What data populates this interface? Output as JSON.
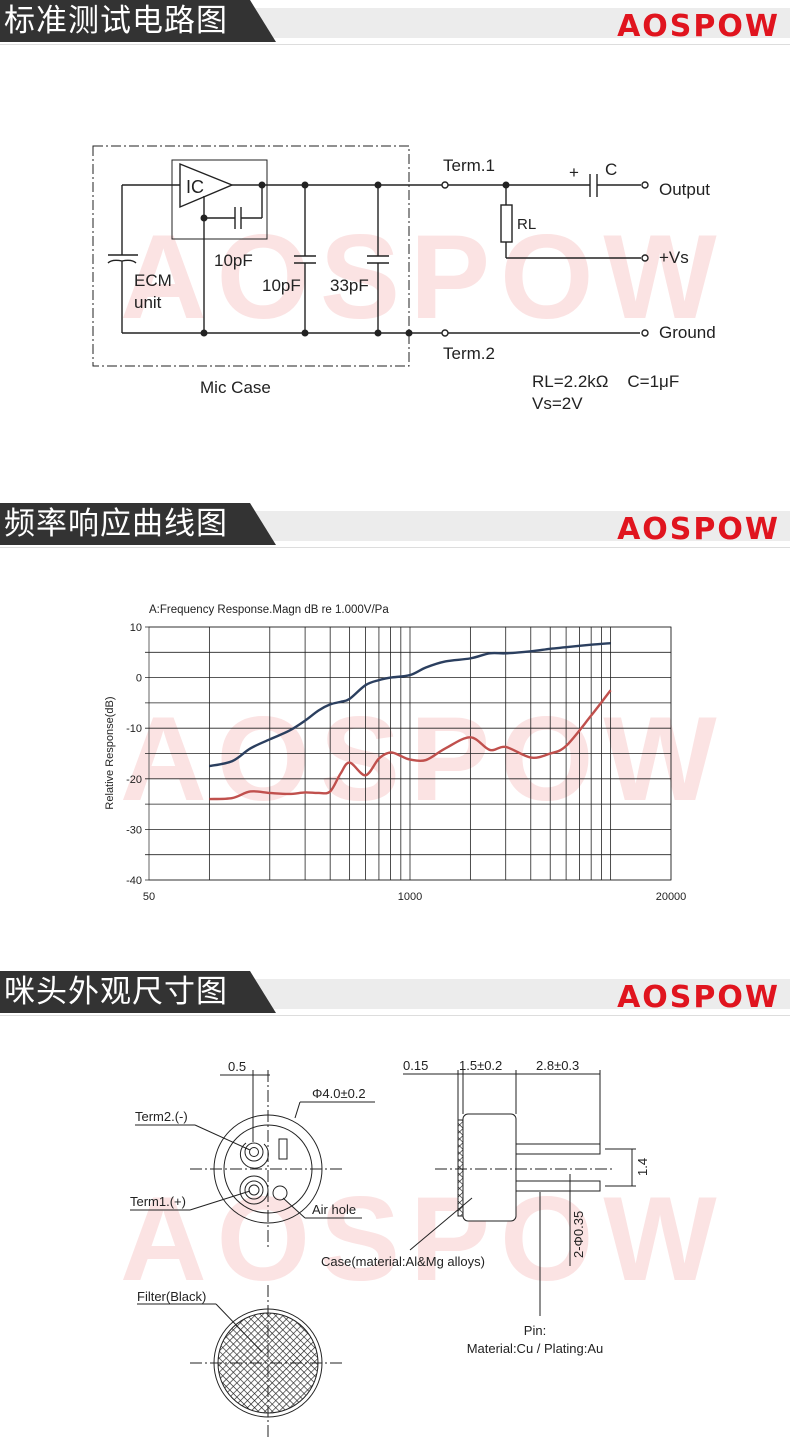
{
  "brand": {
    "logo": "AOSPOW",
    "color": "#e0141e",
    "watermark": "AOSPOW"
  },
  "sections": [
    {
      "title": "标准测试电路图"
    },
    {
      "title": "频率响应曲线图"
    },
    {
      "title": "咪头外观尺寸图"
    }
  ],
  "circuit": {
    "term1": "Term.1",
    "term2": "Term.2",
    "ic": "IC",
    "cap_plus": "+",
    "cap_c": "C",
    "output": "Output",
    "rl": "RL",
    "vs": "+Vs",
    "ground": "Ground",
    "feedback_cap": "10pF",
    "ecm_1": "ECM",
    "ecm_2": "unit",
    "cap1": "10pF",
    "cap2": "33pF",
    "mic_case": "Mic Case",
    "spec1": "RL=2.2kΩ    C=1μF",
    "spec2": "Vs=2V"
  },
  "chart_data": {
    "type": "line",
    "title": "A:Frequency Response.Magn dB re 1.000V/Pa",
    "xlabel": "",
    "ylabel": "Relative Response(dB)",
    "xscale": "log",
    "xlim": [
      50,
      20000
    ],
    "ylim": [
      -40,
      10
    ],
    "xticks": [
      "50",
      "1000",
      "20000"
    ],
    "yticks": [
      "10",
      "0",
      "-10",
      "-20",
      "-30",
      "-40"
    ],
    "grid": true,
    "series": [
      {
        "color": "#2b3f5f",
        "x": [
          100,
          130,
          160,
          200,
          250,
          300,
          350,
          400,
          450,
          500,
          600,
          700,
          800,
          1000,
          1200,
          1500,
          2000,
          2500,
          3000,
          4000,
          5000,
          6000,
          8000,
          10000
        ],
        "y": [
          -17.5,
          -16.5,
          -14,
          -12.2,
          -10.5,
          -8.5,
          -6.5,
          -5.3,
          -4.8,
          -4.2,
          -1.5,
          -0.5,
          0,
          0.5,
          2,
          3.2,
          3.8,
          4.8,
          4.8,
          5.2,
          5.7,
          6,
          6.5,
          6.8
        ]
      },
      {
        "color": "#c0504d",
        "x": [
          100,
          130,
          160,
          200,
          250,
          300,
          350,
          400,
          450,
          500,
          600,
          700,
          800,
          900,
          1000,
          1200,
          1500,
          2000,
          2500,
          3000,
          4000,
          5000,
          6000,
          8000,
          10000
        ],
        "y": [
          -24,
          -23.8,
          -22.5,
          -22.8,
          -23,
          -22.7,
          -22.8,
          -22.5,
          -19,
          -16.8,
          -19.3,
          -16,
          -14.8,
          -15.5,
          -16.2,
          -16.3,
          -14,
          -11.8,
          -14.3,
          -13.7,
          -15.8,
          -15,
          -13.5,
          -7.5,
          -2.5
        ]
      }
    ]
  },
  "dimensions": {
    "d_05": "0.5",
    "diameter": "Φ4.0±0.2",
    "term2": "Term2.(-)",
    "term1": "Term1.(+)",
    "air_hole": "Air hole",
    "d_015": "0.15",
    "d_15": "1.5±0.2",
    "d_28": "2.8±0.3",
    "d_14": "1.4",
    "pin_dia": "2-Φ0.35",
    "case": "Case(material:Al&Mg alloys)",
    "pin_1": "Pin:",
    "pin_2": "Material:Cu / Plating:Au",
    "filter": "Filter(Black)"
  }
}
